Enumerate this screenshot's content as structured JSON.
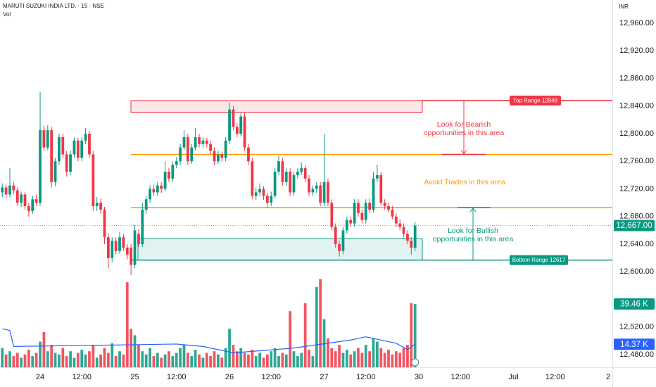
{
  "chart_data": {
    "type": "candlestick",
    "title": "MARUTI SUZUKI INDIA LTD. · 15 · NSE",
    "volume_title": "Vol",
    "currency": "INR",
    "up_color": "#089981",
    "down_color": "#f23645",
    "ylim": [
      12461.7,
      12993.6
    ],
    "yticks": [
      {
        "value": 12960,
        "label": "12,960.00"
      },
      {
        "value": 12920,
        "label": "12,920.00"
      },
      {
        "value": 12880,
        "label": "12,880.00"
      },
      {
        "value": 12840,
        "label": "12,840.00"
      },
      {
        "value": 12800,
        "label": "12,800.00"
      },
      {
        "value": 12760,
        "label": "12,760.00"
      },
      {
        "value": 12720,
        "label": "12,720.00"
      },
      {
        "value": 12680,
        "label": "12,680.00"
      },
      {
        "value": 12640,
        "label": "12,640.00"
      },
      {
        "value": 12600,
        "label": "12,600.00"
      },
      {
        "value": 12520,
        "label": "12,520.00"
      },
      {
        "value": 12480,
        "label": "12,480.00"
      }
    ],
    "xlim": [
      -0.6,
      161.1
    ],
    "xticks": [
      {
        "value": 10,
        "label": "24"
      },
      {
        "value": 21,
        "label": "12:00"
      },
      {
        "value": 35,
        "label": "25"
      },
      {
        "value": 46,
        "label": "12:00"
      },
      {
        "value": 60,
        "label": "26"
      },
      {
        "value": 71,
        "label": "12:00"
      },
      {
        "value": 85,
        "label": "27"
      },
      {
        "value": 96,
        "label": "12:00"
      },
      {
        "value": 110,
        "label": "30"
      },
      {
        "value": 121,
        "label": "12:00"
      },
      {
        "value": 135,
        "label": "Jul"
      },
      {
        "value": 146,
        "label": "12:00"
      },
      {
        "value": 160,
        "label": "2"
      }
    ],
    "grid": false,
    "candles": [
      [
        12715,
        12728,
        12708,
        12722
      ],
      [
        12722,
        12726,
        12706,
        12712
      ],
      [
        12712,
        12750,
        12708,
        12725
      ],
      [
        12725,
        12730,
        12712,
        12718
      ],
      [
        12718,
        12722,
        12695,
        12700
      ],
      [
        12700,
        12716,
        12694,
        12712
      ],
      [
        12712,
        12716,
        12690,
        12695
      ],
      [
        12695,
        12700,
        12680,
        12688
      ],
      [
        12688,
        12710,
        12684,
        12705
      ],
      [
        12705,
        12712,
        12695,
        12700
      ],
      [
        12700,
        12860,
        12695,
        12805
      ],
      [
        12805,
        12812,
        12775,
        12780
      ],
      [
        12780,
        12812,
        12776,
        12805
      ],
      [
        12805,
        12810,
        12722,
        12730
      ],
      [
        12730,
        12765,
        12724,
        12760
      ],
      [
        12760,
        12800,
        12755,
        12795
      ],
      [
        12795,
        12800,
        12765,
        12770
      ],
      [
        12770,
        12775,
        12738,
        12745
      ],
      [
        12745,
        12775,
        12740,
        12770
      ],
      [
        12770,
        12795,
        12765,
        12790
      ],
      [
        12790,
        12794,
        12760,
        12765
      ],
      [
        12765,
        12795,
        12760,
        12790
      ],
      [
        12790,
        12808,
        12785,
        12800
      ],
      [
        12800,
        12804,
        12765,
        12770
      ],
      [
        12770,
        12775,
        12688,
        12695
      ],
      [
        12695,
        12708,
        12688,
        12700
      ],
      [
        12700,
        12706,
        12684,
        12690
      ],
      [
        12690,
        12694,
        12640,
        12650
      ],
      [
        12650,
        12656,
        12605,
        12620
      ],
      [
        12620,
        12650,
        12614,
        12645
      ],
      [
        12645,
        12650,
        12625,
        12630
      ],
      [
        12630,
        12658,
        12626,
        12650
      ],
      [
        12650,
        12655,
        12630,
        12635
      ],
      [
        12635,
        12640,
        12618,
        12625
      ],
      [
        12635,
        12640,
        12595,
        12610
      ],
      [
        12610,
        12668,
        12605,
        12660
      ],
      [
        12655,
        12662,
        12636,
        12640
      ],
      [
        12640,
        12700,
        12636,
        12690
      ],
      [
        12690,
        12710,
        12684,
        12705
      ],
      [
        12705,
        12725,
        12700,
        12720
      ],
      [
        12720,
        12726,
        12710,
        12715
      ],
      [
        12715,
        12730,
        12710,
        12725
      ],
      [
        12725,
        12730,
        12714,
        12720
      ],
      [
        12720,
        12760,
        12716,
        12745
      ],
      [
        12745,
        12750,
        12730,
        12735
      ],
      [
        12735,
        12760,
        12730,
        12755
      ],
      [
        12755,
        12766,
        12750,
        12760
      ],
      [
        12760,
        12785,
        12755,
        12780
      ],
      [
        12780,
        12805,
        12776,
        12795
      ],
      [
        12795,
        12800,
        12755,
        12760
      ],
      [
        12760,
        12785,
        12756,
        12780
      ],
      [
        12780,
        12808,
        12776,
        12795
      ],
      [
        12795,
        12800,
        12780,
        12785
      ],
      [
        12785,
        12795,
        12780,
        12790
      ],
      [
        12790,
        12794,
        12780,
        12785
      ],
      [
        12785,
        12790,
        12770,
        12775
      ],
      [
        12775,
        12780,
        12755,
        12760
      ],
      [
        12760,
        12775,
        12756,
        12770
      ],
      [
        12770,
        12774,
        12760,
        12765
      ],
      [
        12765,
        12795,
        12760,
        12790
      ],
      [
        12790,
        12845,
        12785,
        12835
      ],
      [
        12835,
        12840,
        12805,
        12810
      ],
      [
        12810,
        12815,
        12795,
        12800
      ],
      [
        12800,
        12830,
        12796,
        12825
      ],
      [
        12825,
        12830,
        12775,
        12780
      ],
      [
        12780,
        12785,
        12755,
        12760
      ],
      [
        12760,
        12765,
        12705,
        12710
      ],
      [
        12710,
        12722,
        12704,
        12715
      ],
      [
        12715,
        12728,
        12710,
        12720
      ],
      [
        12720,
        12724,
        12704,
        12710
      ],
      [
        12710,
        12714,
        12692,
        12700
      ],
      [
        12700,
        12716,
        12695,
        12710
      ],
      [
        12710,
        12750,
        12706,
        12745
      ],
      [
        12745,
        12768,
        12740,
        12760
      ],
      [
        12760,
        12765,
        12725,
        12730
      ],
      [
        12730,
        12750,
        12725,
        12745
      ],
      [
        12745,
        12750,
        12710,
        12715
      ],
      [
        12715,
        12745,
        12710,
        12740
      ],
      [
        12740,
        12750,
        12735,
        12745
      ],
      [
        12745,
        12758,
        12740,
        12750
      ],
      [
        12750,
        12754,
        12730,
        12735
      ],
      [
        12735,
        12740,
        12710,
        12715
      ],
      [
        12715,
        12725,
        12710,
        12720
      ],
      [
        12720,
        12730,
        12714,
        12725
      ],
      [
        12725,
        12730,
        12695,
        12700
      ],
      [
        12700,
        12800,
        12695,
        12730
      ],
      [
        12730,
        12735,
        12695,
        12700
      ],
      [
        12700,
        12705,
        12660,
        12665
      ],
      [
        12665,
        12670,
        12635,
        12640
      ],
      [
        12640,
        12645,
        12622,
        12630
      ],
      [
        12630,
        12665,
        12625,
        12660
      ],
      [
        12660,
        12680,
        12655,
        12675
      ],
      [
        12675,
        12680,
        12665,
        12670
      ],
      [
        12670,
        12705,
        12665,
        12700
      ],
      [
        12700,
        12705,
        12680,
        12685
      ],
      [
        12685,
        12690,
        12670,
        12675
      ],
      [
        12675,
        12705,
        12670,
        12700
      ],
      [
        12700,
        12706,
        12685,
        12690
      ],
      [
        12690,
        12745,
        12686,
        12735
      ],
      [
        12735,
        12755,
        12730,
        12740
      ],
      [
        12740,
        12745,
        12695,
        12700
      ],
      [
        12700,
        12705,
        12690,
        12695
      ],
      [
        12695,
        12700,
        12686,
        12690
      ],
      [
        12690,
        12695,
        12676,
        12680
      ],
      [
        12680,
        12685,
        12665,
        12670
      ],
      [
        12670,
        12676,
        12660,
        12665
      ],
      [
        12665,
        12670,
        12650,
        12655
      ],
      [
        12655,
        12660,
        12640,
        12645
      ],
      [
        12645,
        12650,
        12625,
        12635
      ],
      [
        12635,
        12672,
        12630,
        12667
      ]
    ],
    "last_price_label": "12,667.00",
    "vol_ylim": [
      0,
      229
    ],
    "volume": [
      12,
      8,
      10,
      7,
      9,
      6,
      8,
      11,
      7,
      9,
      16,
      22,
      10,
      14,
      9,
      8,
      12,
      7,
      10,
      6,
      9,
      11,
      8,
      10,
      14,
      6,
      8,
      12,
      9,
      15,
      7,
      10,
      8,
      53,
      24,
      20,
      14,
      10,
      8,
      12,
      7,
      9,
      6,
      8,
      10,
      7,
      9,
      12,
      14,
      9,
      7,
      11,
      8,
      6,
      9,
      7,
      10,
      8,
      6,
      12,
      24,
      14,
      10,
      12,
      9,
      8,
      11,
      7,
      9,
      6,
      8,
      10,
      12,
      7,
      9,
      8,
      35,
      10,
      7,
      9,
      40,
      11,
      7,
      50,
      55,
      30,
      18,
      12,
      10,
      14,
      9,
      11,
      8,
      10,
      12,
      9,
      14,
      10,
      18,
      16,
      12,
      9,
      11,
      8,
      10,
      9,
      12,
      14,
      40,
      39.46
    ],
    "volume_last_label": "39.46 K",
    "volume_ma": {
      "color": "#2962ff",
      "x": [
        0,
        2,
        3,
        33,
        46,
        53,
        61,
        77,
        92,
        96,
        104,
        107,
        109
      ],
      "values": [
        24,
        23,
        13,
        14,
        14.5,
        13,
        9,
        12,
        17,
        19,
        15,
        11,
        14.37
      ],
      "last_label": "14.37 K"
    },
    "levels": [
      {
        "value": 12848,
        "label": "Top Range 12848",
        "color": "#f23645"
      },
      {
        "value": 12617,
        "label": "Bottom Range 12617",
        "color": "#089981"
      }
    ],
    "bands": [
      {
        "from": 12831,
        "to": 12848,
        "color": "#f23645"
      },
      {
        "from": 12617,
        "to": 12648,
        "color": "#089981"
      }
    ],
    "lines": [
      {
        "value": 12770,
        "color": "#ff9800"
      },
      {
        "value": 12693,
        "color": "#ff9800"
      }
    ],
    "notes": [
      {
        "text": [
          "Look for Bearish",
          "opportunities in this area"
        ],
        "color": "#f23645"
      },
      {
        "text": [
          "Avoid Trades in this area"
        ],
        "color": "#ff9800"
      },
      {
        "text": [
          "Look for Bullish",
          "opportunities in this area"
        ],
        "color": "#089981"
      }
    ]
  }
}
